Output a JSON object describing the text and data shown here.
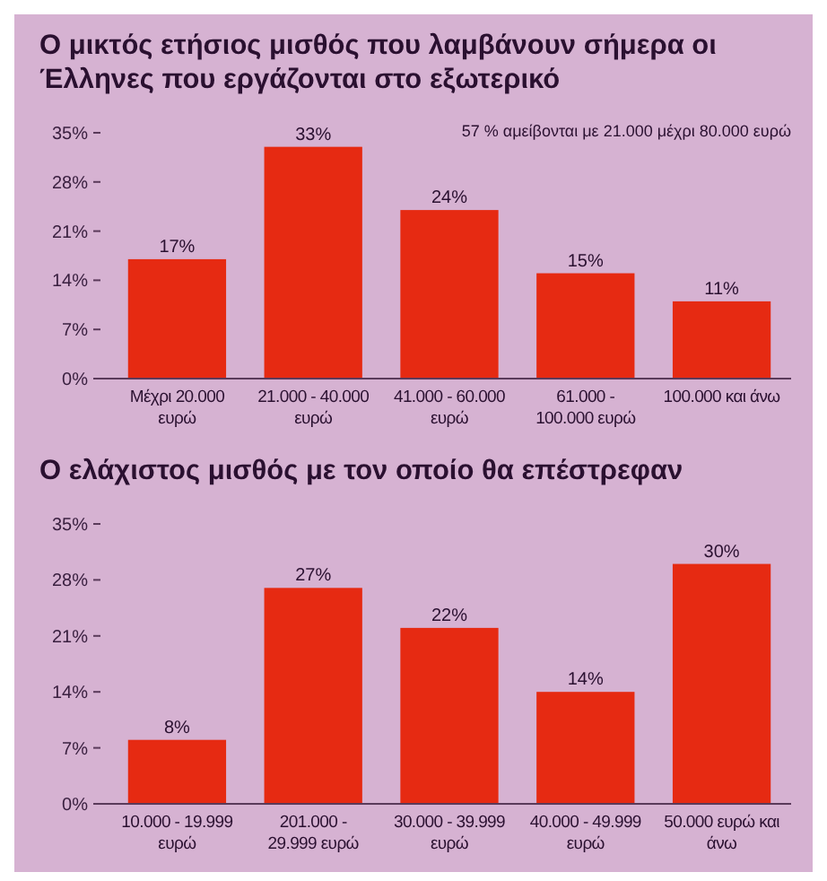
{
  "chart_data": [
    {
      "type": "bar",
      "title": "Ο μικτός ετήσιος μισθός που λαμβάνουν σήμερα οι Έλληνες που εργάζονται στο εξωτερικό",
      "categories": [
        "Μέχρι 20.000 ευρώ",
        "21.000 - 40.000 ευρώ",
        "41.000 - 60.000 ευρώ",
        "61.000 - 100.000 ευρώ",
        "100.000 και άνω"
      ],
      "values": [
        17,
        33,
        24,
        15,
        11
      ],
      "value_labels": [
        "17%",
        "33%",
        "24%",
        "15%",
        "11%"
      ],
      "color": "#e62a12",
      "ylim": [
        0,
        35
      ],
      "yticks": [
        {
          "value": 0,
          "label": "0%"
        },
        {
          "value": 7,
          "label": "7%"
        },
        {
          "value": 14,
          "label": "14%"
        },
        {
          "value": 21,
          "label": "21%"
        },
        {
          "value": 28,
          "label": "28%"
        },
        {
          "value": 35,
          "label": "35%"
        }
      ],
      "annotations": [
        "57 % αμείβονται με 21.000 μέχρι 80.000 ευρώ"
      ]
    },
    {
      "type": "bar",
      "title": "Ο ελάχιστος μισθός με τον οποίο θα επέστρεφαν",
      "categories": [
        "10.000 - 19.999 ευρώ",
        "201.000 - 29.999 ευρώ",
        "30.000 - 39.999 ευρώ",
        "40.000 - 49.999 ευρώ",
        "50.000 ευρώ και άνω"
      ],
      "values": [
        8,
        27,
        22,
        14,
        30
      ],
      "value_labels": [
        "8%",
        "27%",
        "22%",
        "14%",
        "30%"
      ],
      "color": "#e62a12",
      "ylim": [
        0,
        35
      ],
      "yticks": [
        {
          "value": 0,
          "label": "0%"
        },
        {
          "value": 7,
          "label": "7%"
        },
        {
          "value": 14,
          "label": "14%"
        },
        {
          "value": 21,
          "label": "21%"
        },
        {
          "value": 28,
          "label": "28%"
        },
        {
          "value": 35,
          "label": "35%"
        }
      ]
    }
  ]
}
